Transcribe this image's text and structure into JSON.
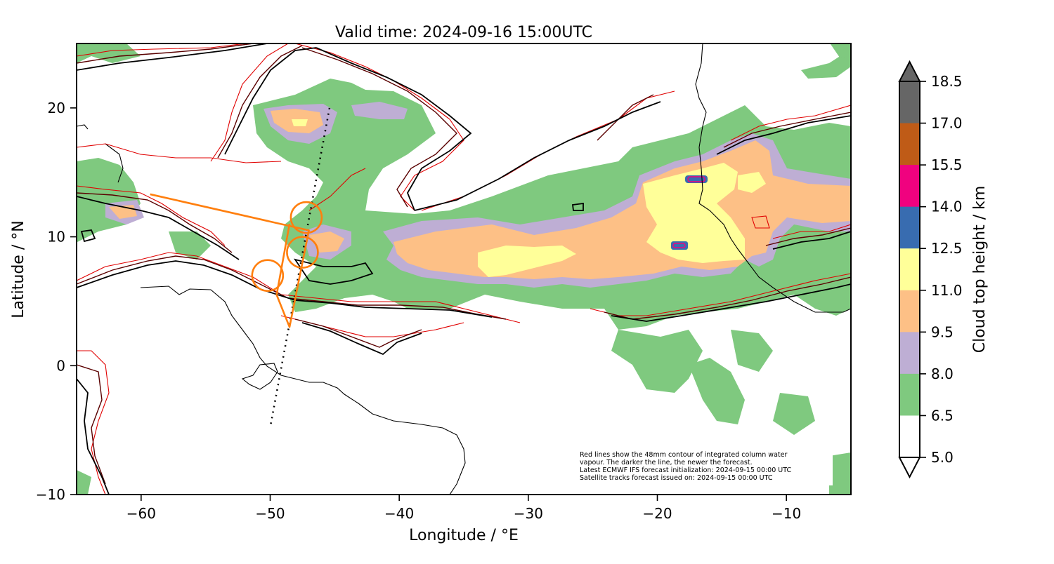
{
  "title": "Valid time: 2024-09-16 15:00UTC",
  "xlabel": "Longitude / °E",
  "ylabel": "Latitude / °N",
  "x_ticks": [
    -60,
    -50,
    -40,
    -30,
    -20,
    -10
  ],
  "x_tick_labels": [
    "−60",
    "−50",
    "−40",
    "−30",
    "−20",
    "−10"
  ],
  "y_ticks": [
    20,
    10,
    0,
    -10
  ],
  "y_tick_labels": [
    "20",
    "10",
    "0",
    "−10"
  ],
  "xlim": [
    -65,
    -5
  ],
  "ylim": [
    -10,
    25
  ],
  "colorbar": {
    "label": "Cloud top height / km",
    "levels": [
      "18.5",
      "17.0",
      "15.5",
      "14.0",
      "12.5",
      "11.0",
      "9.5",
      "8.0",
      "6.5",
      "5.0"
    ],
    "colors": [
      "#666666",
      "#bf5b17",
      "#f0027f",
      "#386cb0",
      "#ffff99",
      "#fdc086",
      "#beaed4",
      "#7fc97f",
      "#ffffff"
    ],
    "extend": "both"
  },
  "annotation": {
    "line1": "Red lines show the 48mm contour of integrated column water",
    "line2": "vapour. The darker the line, the newer the forecast.",
    "line3": "Latest ECMWF IFS forecast initialization: 2024-09-15 00:00 UTC",
    "line4": "Satellite tracks forecast issued on: 2024-09-15 00:00 UTC"
  },
  "legend_colors": {
    "water_vapour_contour_newest": "#000000",
    "water_vapour_contour_mid": "#5a0000",
    "water_vapour_contour_oldest": "#e00000",
    "flight_track": "#ff7f0e",
    "satellite_track": "#000000"
  },
  "chart_data": {
    "type": "map",
    "projection": "PlateCarree",
    "flight_track": {
      "lon": [
        -59.3,
        -47,
        -48.5,
        -49.5,
        -48.5
      ],
      "lat": [
        13.3,
        10.5,
        3.0,
        5.5,
        11.0
      ],
      "circles": [
        {
          "lon": -47.2,
          "lat": 11.5
        },
        {
          "lon": -47.5,
          "lat": 8.8
        },
        {
          "lon": -50.2,
          "lat": 7.0
        }
      ]
    },
    "satellite_track": {
      "lon": [
        -45.4,
        -50.0
      ],
      "lat": [
        20.0,
        -4.8
      ]
    },
    "cloud_top_height_regions": [
      {
        "level_km": "6.5–8.0",
        "description": "broad ITCZ cloud band from -57 to -5 lon, 3 to 17 lat"
      },
      {
        "level_km": "9.5–11.0",
        "description": "band from -57 to -7 lon"
      },
      {
        "level_km": "11.0–12.5",
        "description": "deep convection near -22 to -12 lon, 6 to 16 lat"
      },
      {
        "level_km": "12.5–14.0",
        "description": "small cells near -17 lon 14.5 lat and -18.5 lon 9.5 lat"
      }
    ]
  }
}
